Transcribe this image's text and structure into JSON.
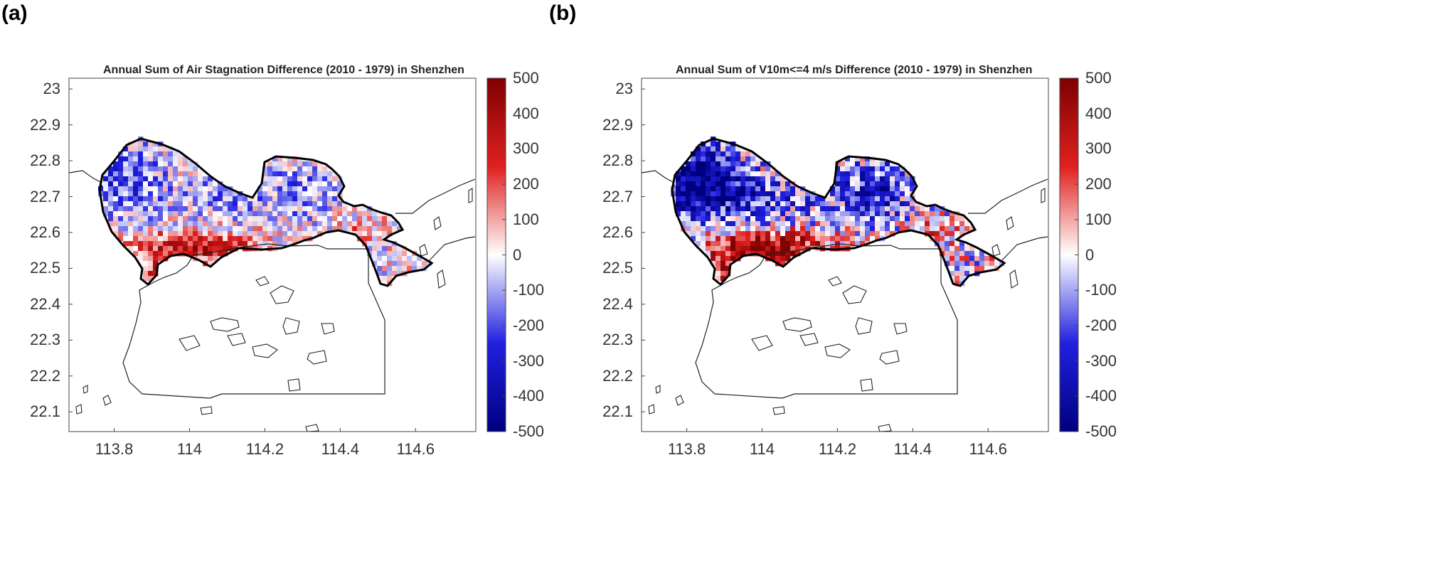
{
  "panels": [
    {
      "label": "(a)",
      "title": "Annual Sum of Air Stagnation Difference (2010 - 1979) in Shenzhen",
      "seed": 7,
      "intensity": 0.75,
      "pattern": "a"
    },
    {
      "label": "(b)",
      "title": "Annual Sum of V10m<=4 m/s Difference (2010 - 1979) in Shenzhen",
      "seed": 19,
      "intensity": 1.0,
      "pattern": "b"
    }
  ],
  "axes": {
    "yticks": [
      "23",
      "22.9",
      "22.8",
      "22.7",
      "22.6",
      "22.5",
      "22.4",
      "22.3",
      "22.2",
      "22.1"
    ],
    "yvalues": [
      23.0,
      22.9,
      22.8,
      22.7,
      22.6,
      22.5,
      22.4,
      22.3,
      22.2,
      22.1
    ],
    "xticks": [
      "113.8",
      "114",
      "114.2",
      "114.4",
      "114.6"
    ],
    "xvalues": [
      113.8,
      114.0,
      114.2,
      114.4,
      114.6
    ],
    "xlim": [
      113.68,
      114.76
    ],
    "ylim": [
      22.045,
      23.03
    ]
  },
  "colorbar": {
    "ticks": [
      "500",
      "400",
      "300",
      "200",
      "100",
      "0",
      "-100",
      "-200",
      "-300",
      "-400",
      "-500"
    ],
    "values": [
      500,
      400,
      300,
      200,
      100,
      0,
      -100,
      -200,
      -300,
      -400,
      -500
    ],
    "range": [
      -500,
      500
    ],
    "colors": {
      "max": "#7f0000",
      "high": "#e02020",
      "mid": "#ffffff",
      "low": "#2020e0",
      "min": "#00007f"
    }
  }
}
